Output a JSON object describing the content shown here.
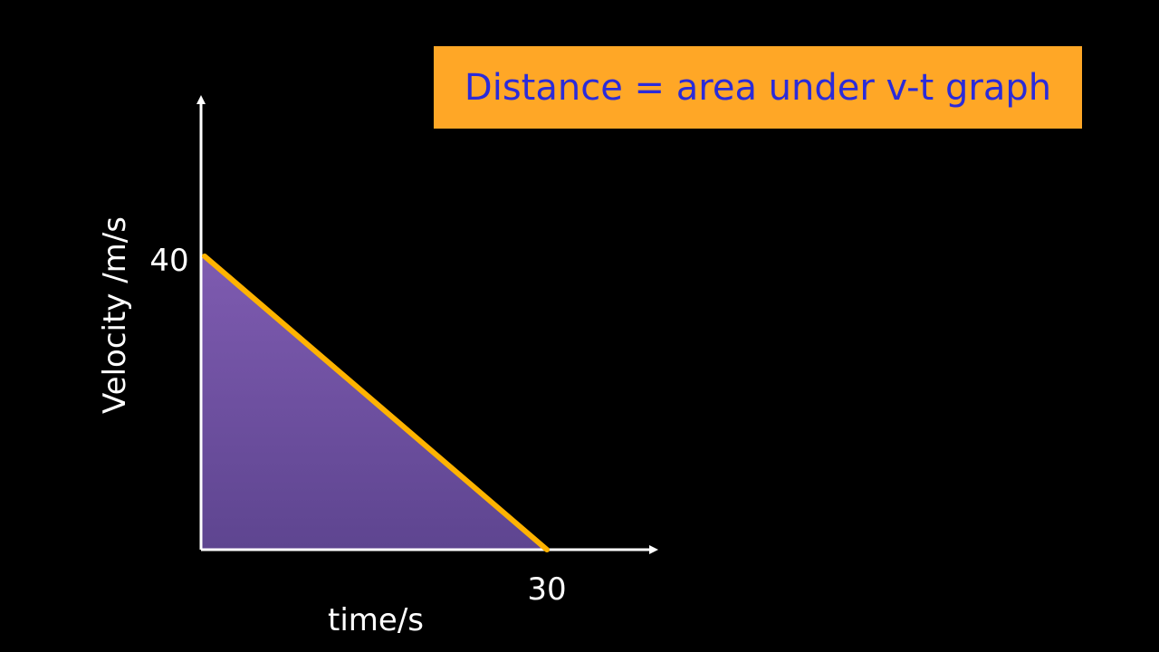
{
  "title_box": {
    "text": "Distance = area under v-t graph",
    "background_color": "#FFA726",
    "text_color": "#2B2BD9"
  },
  "colors": {
    "background": "#000000",
    "axis": "#FFFFFF",
    "line": "#FFB300",
    "fill_top": "#7E5BB0",
    "fill_bottom": "#5E4590",
    "label": "#FFFFFF"
  },
  "chart_data": {
    "type": "area",
    "title": "",
    "xlabel": "time/s",
    "ylabel": "Velocity /m/s",
    "x": [
      0,
      30
    ],
    "series": [
      {
        "values": [
          40,
          0
        ]
      }
    ],
    "tick_labels": {
      "x": [
        "30"
      ],
      "y": [
        "40"
      ]
    },
    "grid": false
  }
}
